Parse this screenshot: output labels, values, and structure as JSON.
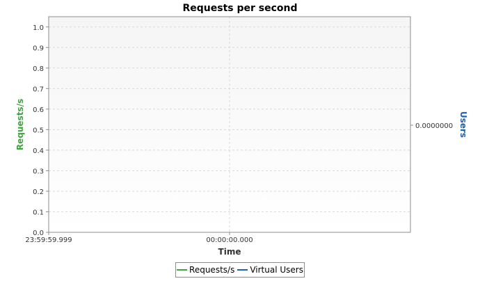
{
  "chart_data": {
    "type": "line",
    "title": "Requests per second",
    "xlabel": "Time",
    "ylabel": "Requests/s",
    "y2label": "Users",
    "x_tick_labels": [
      "23:59:59.999",
      "00:00:00.000"
    ],
    "y_ticks": [
      "0.0",
      "0.1",
      "0.2",
      "0.3",
      "0.4",
      "0.5",
      "0.6",
      "0.7",
      "0.8",
      "0.9",
      "1.0"
    ],
    "ylim": [
      0,
      1.05
    ],
    "y2_tick_labels": [
      "0.0000000"
    ],
    "grid": true,
    "legend_position": "bottom",
    "series": [
      {
        "name": "Requests/s",
        "color": "#3fa33f",
        "values": []
      },
      {
        "name": "Virtual Users",
        "color": "#2060b0",
        "values": []
      }
    ]
  },
  "colors": {
    "ylabel": "#3fa33f",
    "y2label": "#2060b0",
    "plot_bg": "#f7f7f7",
    "grid": "#d8d8d8",
    "axis": "#8c8c8c"
  }
}
